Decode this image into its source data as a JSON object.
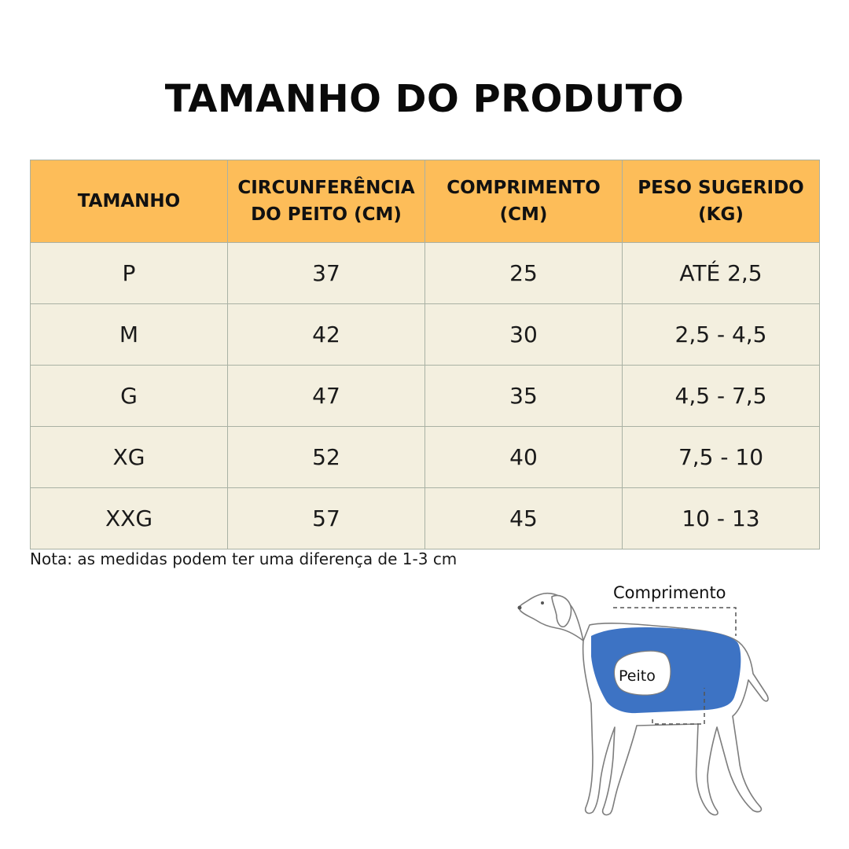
{
  "title": "TAMANHO DO PRODUTO",
  "table": {
    "headers": {
      "size": "TAMANHO",
      "chest_line1": "CIRCUNFERÊNCIA",
      "chest_line2": "DO PEITO (CM)",
      "length_line1": "COMPRIMENTO",
      "length_line2": "(CM)",
      "weight_line1": "PESO SUGERIDO",
      "weight_line2": "(KG)"
    },
    "rows": [
      {
        "size": "P",
        "chest": "37",
        "length": "25",
        "weight": "ATÉ 2,5"
      },
      {
        "size": "M",
        "chest": "42",
        "length": "30",
        "weight": "2,5 - 4,5"
      },
      {
        "size": "G",
        "chest": "47",
        "length": "35",
        "weight": "4,5 - 7,5"
      },
      {
        "size": "XG",
        "chest": "52",
        "length": "40",
        "weight": "7,5 - 10"
      },
      {
        "size": "XXG",
        "chest": "57",
        "length": "45",
        "weight": "10 - 13"
      }
    ],
    "header_color": "#fdbd59",
    "row_color": "#f3efdf"
  },
  "note": "Nota: as medidas podem ter uma diferença de 1-3 cm",
  "illustration": {
    "length_label": "Comprimento",
    "chest_label": "Peito",
    "vest_color": "#3d73c4"
  }
}
